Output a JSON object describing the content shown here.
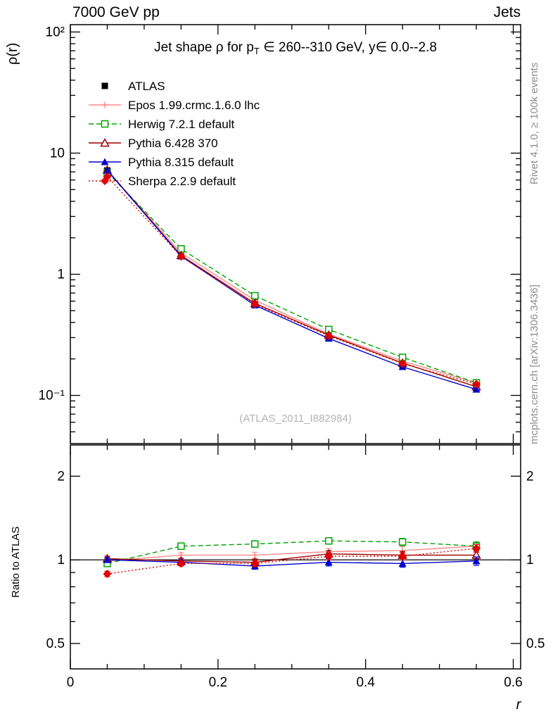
{
  "header": {
    "left": "7000 GeV pp",
    "right": "Jets"
  },
  "side_notes": {
    "top_right": "Rivet 4.1.0, ≥ 100k events",
    "bottom_right": "mcplots.cern.ch [arXiv:1306.3436]"
  },
  "main_panel": {
    "ylabel": "ρ(r)",
    "title_pre": "Jet shape ρ for p",
    "title_sub": "T",
    "title_post": " ∈ 260--310 GeV, y∈ 0.0--2.8",
    "watermark": "(ATLAS_2011_I882984)"
  },
  "ratio_panel": {
    "ylabel": "Ratio to ATLAS"
  },
  "xlabel": "r",
  "chart_data": [
    {
      "type": "line",
      "panel": "main",
      "title": "Jet shape ρ for p_T ∈ 260--310 GeV, y∈ 0.0--2.8",
      "xlabel": "r",
      "ylabel": "ρ(r)",
      "xscale": "linear",
      "yscale": "log",
      "xlim": [
        0,
        0.61
      ],
      "ylim": [
        0.04,
        115
      ],
      "grid": false,
      "legend": "upper-left",
      "xtick_labels": false,
      "ytick_labels_right": false,
      "x": [
        0.05,
        0.15,
        0.25,
        0.35,
        0.45,
        0.55
      ],
      "xticks": [
        {
          "v": 0,
          "label": "0"
        },
        {
          "v": 0.2,
          "label": "0.2"
        },
        {
          "v": 0.4,
          "label": "0.4"
        },
        {
          "v": 0.6,
          "label": "0.6"
        }
      ],
      "yticks": [
        {
          "v": 100,
          "label": "10²"
        },
        {
          "v": 10,
          "label": "10"
        },
        {
          "v": 1,
          "label": "1"
        },
        {
          "v": 0.1,
          "label": "10⁻¹"
        }
      ],
      "series": [
        {
          "name": "ATLAS",
          "color": "#000000",
          "marker": "filled-square",
          "line": "none",
          "yerr_frac": 0.03,
          "values": [
            7.2,
            1.44,
            0.585,
            0.3,
            0.178,
            0.113
          ]
        },
        {
          "name": "Epos 1.99.crmc.1.6.0 lhc",
          "color": "#ff8a8a",
          "marker": "open-cross",
          "line": "solid",
          "yerr_frac": 0.03,
          "values": [
            7.15,
            1.5,
            0.61,
            0.321,
            0.192,
            0.127
          ]
        },
        {
          "name": "Herwig 7.2.1 default",
          "color": "#00a300",
          "marker": "open-square",
          "line": "dashed",
          "yerr_frac": 0.03,
          "values": [
            6.95,
            1.62,
            0.665,
            0.35,
            0.206,
            0.127
          ]
        },
        {
          "name": "Pythia 6.428 370",
          "color": "#990000",
          "marker": "open-triangle",
          "line": "solid",
          "yerr_frac": 0.03,
          "values": [
            7.25,
            1.43,
            0.575,
            0.315,
            0.185,
            0.118
          ]
        },
        {
          "name": "Pythia 8.315 default",
          "color": "#0000cc",
          "marker": "filled-triangle",
          "line": "solid",
          "yerr_frac": 0.03,
          "values": [
            7.2,
            1.41,
            0.555,
            0.295,
            0.172,
            0.112
          ]
        },
        {
          "name": "Sherpa 2.2.9 default",
          "color": "#e00000",
          "marker": "filled-diamond",
          "line": "dotted",
          "yerr_frac": 0.03,
          "values": [
            6.4,
            1.4,
            0.565,
            0.31,
            0.183,
            0.124
          ]
        }
      ]
    },
    {
      "type": "line",
      "panel": "ratio",
      "title": "",
      "xlabel": "r",
      "ylabel": "Ratio to ATLAS",
      "xscale": "linear",
      "yscale": "log",
      "xlim": [
        0,
        0.61
      ],
      "ylim": [
        0.405,
        2.59
      ],
      "grid": false,
      "legend": null,
      "refline": 1,
      "xtick_labels": true,
      "ytick_labels_right": true,
      "x": [
        0.05,
        0.15,
        0.25,
        0.35,
        0.45,
        0.55
      ],
      "xticks": [
        {
          "v": 0,
          "label": "0"
        },
        {
          "v": 0.2,
          "label": "0.2"
        },
        {
          "v": 0.4,
          "label": "0.4"
        },
        {
          "v": 0.6,
          "label": "0.6"
        }
      ],
      "yticks": [
        {
          "v": 2,
          "label": "2"
        },
        {
          "v": 1,
          "label": "1"
        },
        {
          "v": 0.5,
          "label": "0.5"
        }
      ],
      "series": [
        {
          "name": "Epos 1.99.crmc.1.6.0 lhc",
          "color": "#ff8a8a",
          "marker": "open-cross",
          "line": "solid",
          "values": [
            0.99,
            1.04,
            1.04,
            1.07,
            1.08,
            1.12
          ],
          "yerr": [
            0.02,
            0.02,
            0.025,
            0.03,
            0.035,
            0.04
          ]
        },
        {
          "name": "Herwig 7.2.1 default",
          "color": "#00a300",
          "marker": "open-square",
          "line": "dashed",
          "values": [
            0.97,
            1.12,
            1.14,
            1.17,
            1.16,
            1.12
          ],
          "yerr": [
            0.02,
            0.02,
            0.025,
            0.03,
            0.035,
            0.04
          ]
        },
        {
          "name": "Pythia 6.428 370",
          "color": "#990000",
          "marker": "open-triangle",
          "line": "solid",
          "values": [
            1.01,
            0.99,
            0.98,
            1.05,
            1.04,
            1.04
          ],
          "yerr": [
            0.02,
            0.02,
            0.025,
            0.03,
            0.03,
            0.035
          ]
        },
        {
          "name": "Pythia 8.315 default",
          "color": "#0000cc",
          "marker": "filled-triangle",
          "line": "solid",
          "values": [
            1.0,
            0.98,
            0.95,
            0.98,
            0.97,
            0.99
          ],
          "yerr": [
            0.02,
            0.02,
            0.025,
            0.03,
            0.03,
            0.035
          ]
        },
        {
          "name": "Sherpa 2.2.9 default",
          "color": "#e00000",
          "marker": "filled-diamond",
          "line": "dotted",
          "values": [
            0.89,
            0.97,
            0.97,
            1.03,
            1.03,
            1.1
          ],
          "yerr": [
            0.02,
            0.02,
            0.025,
            0.03,
            0.03,
            0.035
          ]
        }
      ]
    }
  ]
}
